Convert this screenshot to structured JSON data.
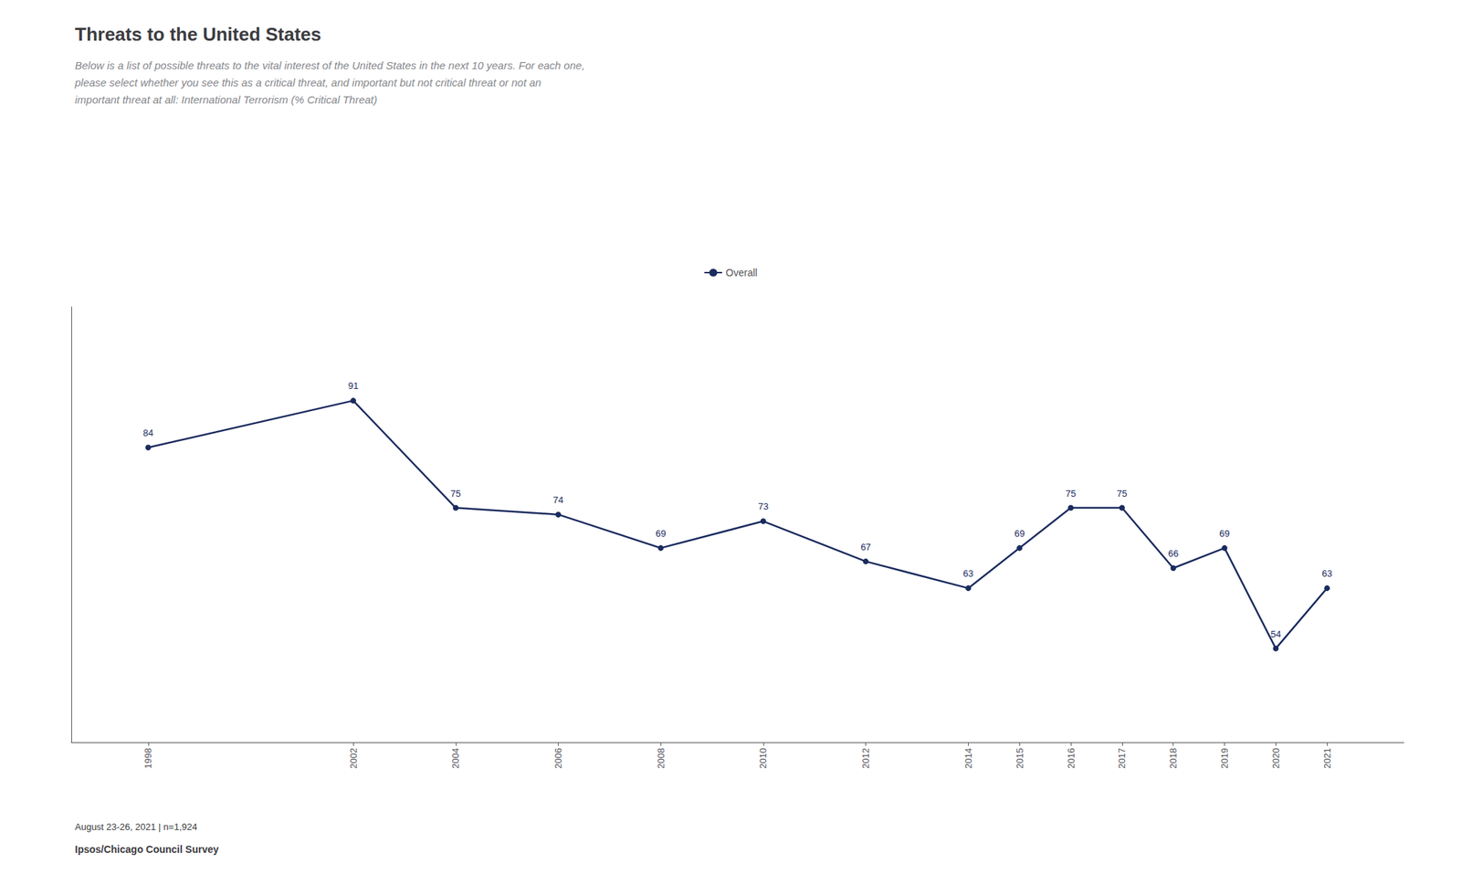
{
  "chart_data": {
    "type": "line",
    "title": "Threats to the United States",
    "subtitle": [
      "Below is a list of possible threats to the vital interest of the United States in the next 10 years. For each one,",
      "please select whether you see this as a critical threat, and important but not critical threat or not an",
      "important threat at all: International Terrorism (% Critical Threat)"
    ],
    "annotations": [
      "August 23-26, 2021 | n=1,924",
      "Ipsos/Chicago Council Survey"
    ],
    "x": [
      1998,
      2002,
      2004,
      2006,
      2008,
      2010,
      2012,
      2014,
      2015,
      2016,
      2017,
      2018,
      2019,
      2020,
      2021
    ],
    "series": [
      {
        "name": "Overall",
        "color": "#1a2b5e",
        "marker": "circle",
        "values": [
          84,
          91,
          75,
          74,
          69,
          73,
          67,
          63,
          69,
          75,
          75,
          66,
          69,
          54,
          63
        ]
      }
    ],
    "xlim": [
      1996.5,
      2022.5
    ],
    "xticks": [
      1998,
      2002,
      2004,
      2006,
      2008,
      2010,
      2012,
      2014,
      2015,
      2016,
      2017,
      2018,
      2019,
      2020,
      2021
    ],
    "ylim": [
      40,
      105
    ],
    "tick_labels": "x",
    "grid": false,
    "legend": "top",
    "data_labels": true
  }
}
